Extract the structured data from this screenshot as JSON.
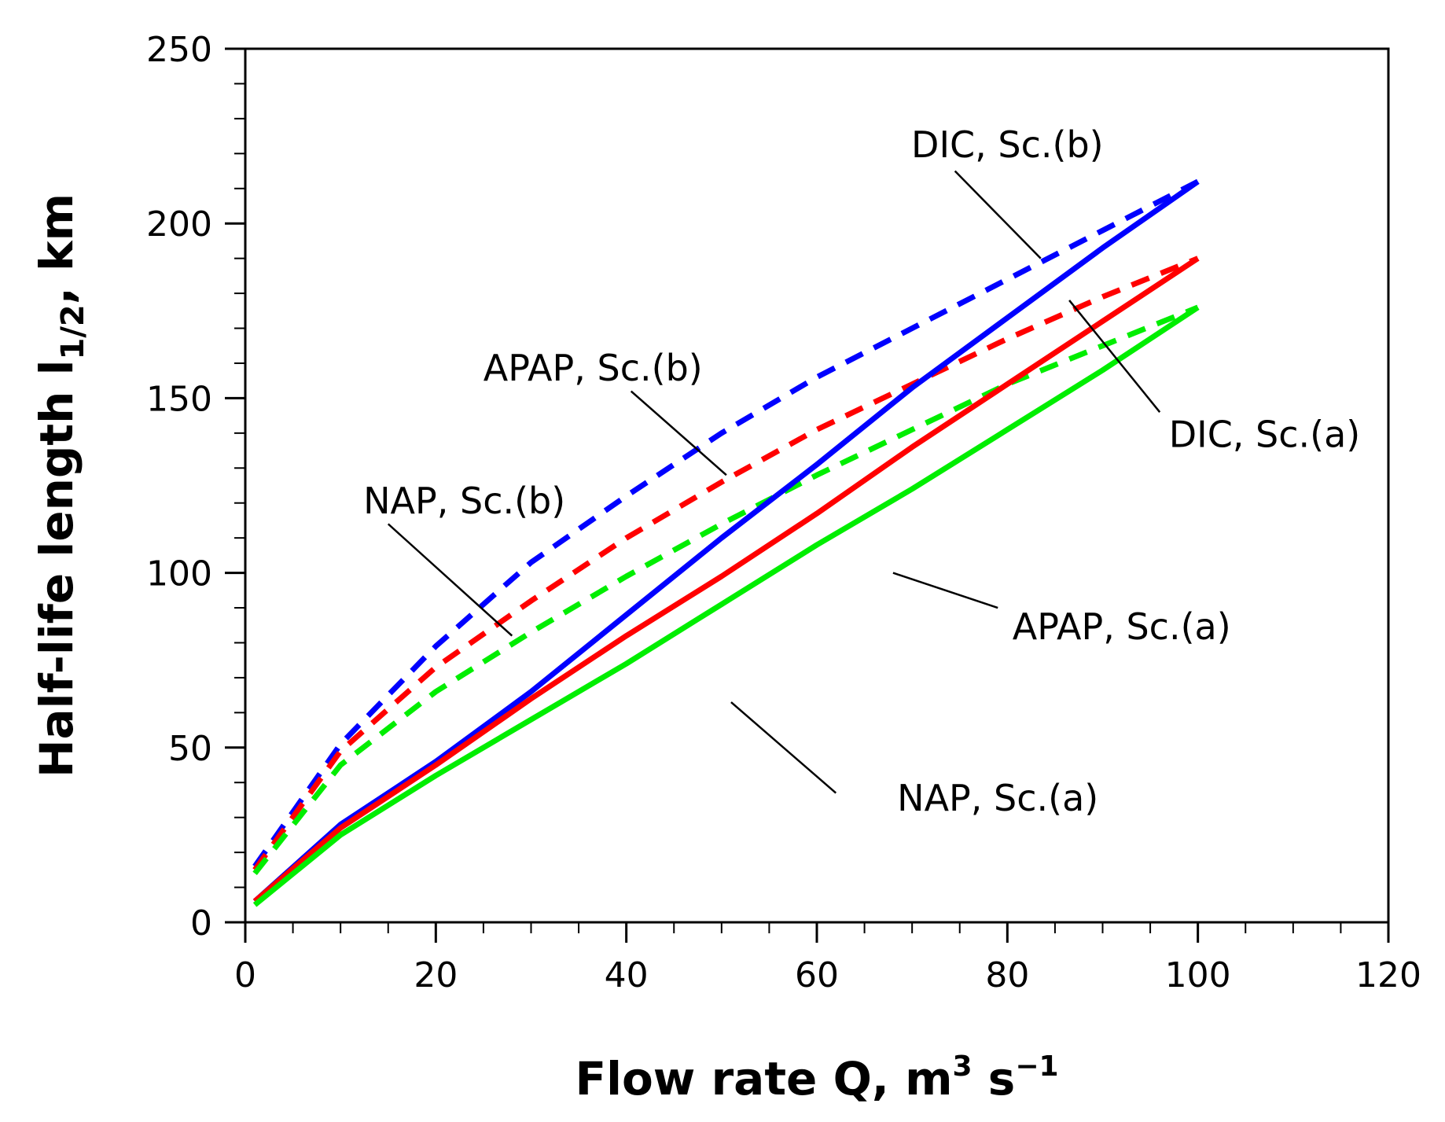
{
  "chart_data": {
    "type": "line",
    "title": "",
    "xlabel": "Flow rate Q, m",
    "xlabel_sup1": "3",
    "xlabel_mid": " s",
    "xlabel_sup2": "−1",
    "ylabel": "Half-life length l",
    "ylabel_sub": "1/2",
    "ylabel_tail": ", km",
    "xlim": [
      0,
      120
    ],
    "ylim": [
      0,
      250
    ],
    "x_ticks": [
      "0",
      "20",
      "40",
      "60",
      "80",
      "100",
      "120"
    ],
    "y_ticks": [
      "0",
      "50",
      "100",
      "150",
      "200",
      "250"
    ],
    "x_tick_values": [
      0,
      20,
      40,
      60,
      80,
      100,
      120
    ],
    "y_tick_values": [
      0,
      50,
      100,
      150,
      200,
      250
    ],
    "x_minor_step": 5,
    "y_minor_step": 10,
    "grid": false,
    "legend": "none",
    "series": [
      {
        "name": "DIC, Sc.(b)",
        "color": "#0000ff",
        "dash": "dashed",
        "x": [
          1,
          10,
          20,
          30,
          40,
          50,
          60,
          70,
          80,
          90,
          100
        ],
        "y": [
          16,
          51,
          79,
          103,
          122,
          140,
          156,
          170,
          184,
          198,
          212
        ]
      },
      {
        "name": "APAP, Sc.(b)",
        "color": "#ff0000",
        "dash": "dashed",
        "x": [
          1,
          10,
          20,
          30,
          40,
          50,
          60,
          70,
          80,
          90,
          100
        ],
        "y": [
          15,
          49,
          73,
          92,
          110,
          126,
          141,
          154,
          167,
          179,
          190
        ]
      },
      {
        "name": "NAP, Sc.(b)",
        "color": "#00ee00",
        "dash": "dashed",
        "x": [
          1,
          10,
          20,
          30,
          40,
          50,
          60,
          70,
          80,
          90,
          100
        ],
        "y": [
          14,
          45,
          66,
          83,
          99,
          114,
          128,
          141,
          154,
          165,
          176
        ]
      },
      {
        "name": "DIC, Sc.(a)",
        "color": "#0000ff",
        "dash": "solid",
        "x": [
          1,
          10,
          20,
          30,
          40,
          50,
          60,
          70,
          80,
          90,
          100
        ],
        "y": [
          6,
          28,
          46,
          66,
          88,
          110,
          131,
          153,
          173,
          193,
          212
        ]
      },
      {
        "name": "APAP, Sc.(a)",
        "color": "#ff0000",
        "dash": "solid",
        "x": [
          1,
          10,
          20,
          30,
          40,
          50,
          60,
          70,
          80,
          90,
          100
        ],
        "y": [
          6,
          27,
          45,
          64,
          82,
          99,
          117,
          136,
          154,
          172,
          190
        ]
      },
      {
        "name": "NAP, Sc.(a)",
        "color": "#00ee00",
        "dash": "solid",
        "x": [
          1,
          10,
          20,
          30,
          40,
          50,
          60,
          70,
          80,
          90,
          100
        ],
        "y": [
          5,
          25,
          42,
          58,
          74,
          91,
          108,
          124,
          141,
          158,
          176
        ]
      }
    ],
    "annotations": [
      {
        "label": "DIC, Sc.(b)",
        "text_x": 80,
        "text_y": 219,
        "anchor": "middle",
        "line_from": [
          74.5,
          215
        ],
        "line_to": [
          83.5,
          190
        ]
      },
      {
        "label": "APAP, Sc.(b)",
        "text_x": 36.5,
        "text_y": 155,
        "anchor": "middle",
        "line_from": [
          40.5,
          152
        ],
        "line_to": [
          50.5,
          128
        ]
      },
      {
        "label": "NAP, Sc.(b)",
        "text_x": 23,
        "text_y": 117,
        "anchor": "middle",
        "line_from": [
          15,
          114
        ],
        "line_to": [
          28,
          82
        ]
      },
      {
        "label": "DIC, Sc.(a)",
        "text_x": 107,
        "text_y": 136,
        "anchor": "middle",
        "line_from": [
          86.5,
          178
        ],
        "line_to": [
          96,
          146
        ]
      },
      {
        "label": "APAP, Sc.(a)",
        "text_x": 92,
        "text_y": 81,
        "anchor": "middle",
        "line_from": [
          68,
          100
        ],
        "line_to": [
          79,
          90
        ]
      },
      {
        "label": "NAP, Sc.(a)",
        "text_x": 79,
        "text_y": 32,
        "anchor": "middle",
        "line_from": [
          51,
          63
        ],
        "line_to": [
          62,
          37
        ]
      }
    ]
  }
}
